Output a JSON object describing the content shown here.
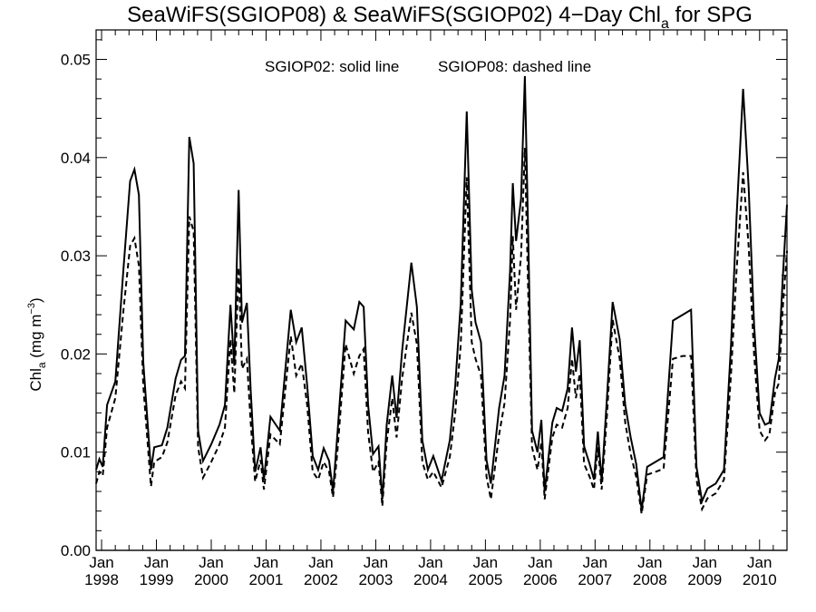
{
  "chart_data": {
    "type": "line",
    "title": {
      "prefix": "SeaWiFS(SGIOP08) & SeaWiFS(SGIOP02) 4−Day Chl",
      "subscript": "a",
      "suffix": " for SPG"
    },
    "ylabel": {
      "prefix": "Chl",
      "subscript": "a",
      "middle": " (mg m",
      "superscript": "−3",
      "suffix": ")"
    },
    "annotation": {
      "solid": "SGIOP02: solid line",
      "dashed": "SGIOP08: dashed line"
    },
    "x_ticks": [
      {
        "month": "Jan",
        "year": "1998",
        "t": 1998.0
      },
      {
        "month": "Jan",
        "year": "1999",
        "t": 1999.0
      },
      {
        "month": "Jan",
        "year": "2000",
        "t": 2000.0
      },
      {
        "month": "Jan",
        "year": "2001",
        "t": 2001.0
      },
      {
        "month": "Jan",
        "year": "2002",
        "t": 2002.0
      },
      {
        "month": "Jan",
        "year": "2003",
        "t": 2003.0
      },
      {
        "month": "Jan",
        "year": "2004",
        "t": 2004.0
      },
      {
        "month": "Jan",
        "year": "2005",
        "t": 2005.0
      },
      {
        "month": "Jan",
        "year": "2006",
        "t": 2006.0
      },
      {
        "month": "Jan",
        "year": "2007",
        "t": 2007.0
      },
      {
        "month": "Jan",
        "year": "2008",
        "t": 2008.0
      },
      {
        "month": "Jan",
        "year": "2009",
        "t": 2009.0
      },
      {
        "month": "Jan",
        "year": "2010",
        "t": 2010.0
      }
    ],
    "y_ticks": [
      "0.00",
      "0.01",
      "0.02",
      "0.03",
      "0.04",
      "0.05"
    ],
    "xlim": [
      1997.9,
      2010.5
    ],
    "ylim": [
      0,
      0.053
    ],
    "series": [
      {
        "name": "SGIOP02",
        "style": "solid",
        "points": [
          [
            1997.9,
            0.0082
          ],
          [
            1997.96,
            0.0093
          ],
          [
            1998.02,
            0.0085
          ],
          [
            1998.1,
            0.0148
          ],
          [
            1998.25,
            0.0172
          ],
          [
            1998.4,
            0.0287
          ],
          [
            1998.52,
            0.0376
          ],
          [
            1998.6,
            0.0388
          ],
          [
            1998.68,
            0.0362
          ],
          [
            1998.76,
            0.0192
          ],
          [
            1998.9,
            0.0082
          ],
          [
            1998.96,
            0.0105
          ],
          [
            1999.1,
            0.0107
          ],
          [
            1999.2,
            0.0125
          ],
          [
            1999.35,
            0.0175
          ],
          [
            1999.45,
            0.0194
          ],
          [
            1999.52,
            0.0198
          ],
          [
            1999.6,
            0.0421
          ],
          [
            1999.68,
            0.0394
          ],
          [
            1999.76,
            0.0122
          ],
          [
            1999.85,
            0.0091
          ],
          [
            2000.0,
            0.0108
          ],
          [
            2000.15,
            0.0128
          ],
          [
            2000.25,
            0.0148
          ],
          [
            2000.35,
            0.025
          ],
          [
            2000.42,
            0.0188
          ],
          [
            2000.5,
            0.0367
          ],
          [
            2000.56,
            0.0232
          ],
          [
            2000.65,
            0.0252
          ],
          [
            2000.72,
            0.0163
          ],
          [
            2000.8,
            0.008
          ],
          [
            2000.9,
            0.0105
          ],
          [
            2000.96,
            0.0072
          ],
          [
            2001.08,
            0.0136
          ],
          [
            2001.25,
            0.0122
          ],
          [
            2001.45,
            0.0245
          ],
          [
            2001.55,
            0.0212
          ],
          [
            2001.65,
            0.0227
          ],
          [
            2001.75,
            0.0168
          ],
          [
            2001.85,
            0.0096
          ],
          [
            2001.95,
            0.0082
          ],
          [
            2002.05,
            0.0104
          ],
          [
            2002.15,
            0.0091
          ],
          [
            2002.22,
            0.006
          ],
          [
            2002.3,
            0.0118
          ],
          [
            2002.45,
            0.0234
          ],
          [
            2002.6,
            0.0225
          ],
          [
            2002.7,
            0.0253
          ],
          [
            2002.78,
            0.0248
          ],
          [
            2002.86,
            0.0148
          ],
          [
            2002.95,
            0.0098
          ],
          [
            2003.05,
            0.0106
          ],
          [
            2003.12,
            0.0052
          ],
          [
            2003.2,
            0.0128
          ],
          [
            2003.3,
            0.0178
          ],
          [
            2003.38,
            0.0135
          ],
          [
            2003.48,
            0.0203
          ],
          [
            2003.65,
            0.0293
          ],
          [
            2003.75,
            0.0248
          ],
          [
            2003.85,
            0.0112
          ],
          [
            2003.95,
            0.0082
          ],
          [
            2004.05,
            0.0096
          ],
          [
            2004.2,
            0.0071
          ],
          [
            2004.35,
            0.0112
          ],
          [
            2004.45,
            0.0168
          ],
          [
            2004.55,
            0.0252
          ],
          [
            2004.66,
            0.0447
          ],
          [
            2004.75,
            0.0265
          ],
          [
            2004.82,
            0.0232
          ],
          [
            2004.92,
            0.0212
          ],
          [
            2005.02,
            0.0092
          ],
          [
            2005.1,
            0.0068
          ],
          [
            2005.25,
            0.0145
          ],
          [
            2005.35,
            0.0178
          ],
          [
            2005.45,
            0.0285
          ],
          [
            2005.5,
            0.0374
          ],
          [
            2005.56,
            0.0315
          ],
          [
            2005.65,
            0.0358
          ],
          [
            2005.72,
            0.0483
          ],
          [
            2005.78,
            0.032
          ],
          [
            2005.85,
            0.0122
          ],
          [
            2005.95,
            0.01
          ],
          [
            2006.02,
            0.0133
          ],
          [
            2006.08,
            0.006
          ],
          [
            2006.22,
            0.013
          ],
          [
            2006.3,
            0.0145
          ],
          [
            2006.4,
            0.0142
          ],
          [
            2006.5,
            0.0165
          ],
          [
            2006.58,
            0.0227
          ],
          [
            2006.65,
            0.0182
          ],
          [
            2006.72,
            0.0214
          ],
          [
            2006.8,
            0.0106
          ],
          [
            2006.9,
            0.0088
          ],
          [
            2006.98,
            0.0072
          ],
          [
            2007.05,
            0.0121
          ],
          [
            2007.12,
            0.007
          ],
          [
            2007.22,
            0.0158
          ],
          [
            2007.32,
            0.0253
          ],
          [
            2007.45,
            0.0215
          ],
          [
            2007.55,
            0.0148
          ],
          [
            2007.65,
            0.0115
          ],
          [
            2007.75,
            0.0088
          ],
          [
            2007.85,
            0.0041
          ],
          [
            2007.95,
            0.0085
          ],
          [
            2008.1,
            0.009
          ],
          [
            2008.25,
            0.0095
          ],
          [
            2008.42,
            0.0234
          ],
          [
            2008.6,
            0.024
          ],
          [
            2008.75,
            0.0245
          ],
          [
            2008.85,
            0.0085
          ],
          [
            2008.95,
            0.005
          ],
          [
            2009.05,
            0.0063
          ],
          [
            2009.2,
            0.0068
          ],
          [
            2009.35,
            0.0082
          ],
          [
            2009.48,
            0.021
          ],
          [
            2009.58,
            0.034
          ],
          [
            2009.7,
            0.047
          ],
          [
            2009.8,
            0.037
          ],
          [
            2009.9,
            0.023
          ],
          [
            2010.0,
            0.014
          ],
          [
            2010.1,
            0.0128
          ],
          [
            2010.18,
            0.013
          ],
          [
            2010.28,
            0.0175
          ],
          [
            2010.35,
            0.0195
          ],
          [
            2010.42,
            0.0275
          ],
          [
            2010.5,
            0.0352
          ]
        ]
      },
      {
        "name": "SGIOP08",
        "style": "dashed",
        "points": [
          [
            1997.9,
            0.0068
          ],
          [
            1997.96,
            0.008
          ],
          [
            1998.02,
            0.0076
          ],
          [
            1998.1,
            0.0125
          ],
          [
            1998.25,
            0.0155
          ],
          [
            1998.4,
            0.0245
          ],
          [
            1998.52,
            0.031
          ],
          [
            1998.6,
            0.0318
          ],
          [
            1998.68,
            0.029
          ],
          [
            1998.76,
            0.0168
          ],
          [
            1998.9,
            0.0065
          ],
          [
            1998.96,
            0.009
          ],
          [
            1999.1,
            0.0095
          ],
          [
            1999.2,
            0.011
          ],
          [
            1999.35,
            0.0158
          ],
          [
            1999.45,
            0.0172
          ],
          [
            1999.52,
            0.0165
          ],
          [
            1999.6,
            0.034
          ],
          [
            1999.68,
            0.0325
          ],
          [
            1999.76,
            0.0105
          ],
          [
            1999.85,
            0.0074
          ],
          [
            2000.0,
            0.009
          ],
          [
            2000.15,
            0.0108
          ],
          [
            2000.25,
            0.0125
          ],
          [
            2000.35,
            0.0215
          ],
          [
            2000.42,
            0.016
          ],
          [
            2000.5,
            0.0288
          ],
          [
            2000.56,
            0.0185
          ],
          [
            2000.65,
            0.0195
          ],
          [
            2000.72,
            0.013
          ],
          [
            2000.8,
            0.007
          ],
          [
            2000.9,
            0.0092
          ],
          [
            2000.96,
            0.0062
          ],
          [
            2001.08,
            0.0118
          ],
          [
            2001.25,
            0.0108
          ],
          [
            2001.45,
            0.0218
          ],
          [
            2001.55,
            0.0178
          ],
          [
            2001.65,
            0.019
          ],
          [
            2001.75,
            0.0148
          ],
          [
            2001.85,
            0.008
          ],
          [
            2001.95,
            0.0072
          ],
          [
            2002.05,
            0.009
          ],
          [
            2002.15,
            0.008
          ],
          [
            2002.22,
            0.0054
          ],
          [
            2002.3,
            0.01
          ],
          [
            2002.45,
            0.021
          ],
          [
            2002.6,
            0.018
          ],
          [
            2002.7,
            0.0198
          ],
          [
            2002.78,
            0.0205
          ],
          [
            2002.86,
            0.012
          ],
          [
            2002.95,
            0.008
          ],
          [
            2003.05,
            0.009
          ],
          [
            2003.12,
            0.0045
          ],
          [
            2003.2,
            0.011
          ],
          [
            2003.3,
            0.0155
          ],
          [
            2003.38,
            0.0115
          ],
          [
            2003.48,
            0.0175
          ],
          [
            2003.65,
            0.0242
          ],
          [
            2003.75,
            0.021
          ],
          [
            2003.85,
            0.009
          ],
          [
            2003.95,
            0.0072
          ],
          [
            2004.05,
            0.008
          ],
          [
            2004.2,
            0.0064
          ],
          [
            2004.35,
            0.0095
          ],
          [
            2004.45,
            0.014
          ],
          [
            2004.55,
            0.021
          ],
          [
            2004.66,
            0.038
          ],
          [
            2004.75,
            0.0212
          ],
          [
            2004.82,
            0.0195
          ],
          [
            2004.92,
            0.0178
          ],
          [
            2005.02,
            0.0075
          ],
          [
            2005.1,
            0.0052
          ],
          [
            2005.25,
            0.0118
          ],
          [
            2005.35,
            0.015
          ],
          [
            2005.45,
            0.0235
          ],
          [
            2005.5,
            0.032
          ],
          [
            2005.56,
            0.0245
          ],
          [
            2005.65,
            0.03
          ],
          [
            2005.72,
            0.041
          ],
          [
            2005.78,
            0.0262
          ],
          [
            2005.85,
            0.0105
          ],
          [
            2005.95,
            0.0082
          ],
          [
            2006.02,
            0.011
          ],
          [
            2006.08,
            0.0052
          ],
          [
            2006.22,
            0.0115
          ],
          [
            2006.3,
            0.0128
          ],
          [
            2006.4,
            0.0125
          ],
          [
            2006.5,
            0.0145
          ],
          [
            2006.58,
            0.0195
          ],
          [
            2006.65,
            0.0155
          ],
          [
            2006.72,
            0.018
          ],
          [
            2006.8,
            0.0088
          ],
          [
            2006.9,
            0.0075
          ],
          [
            2006.98,
            0.0062
          ],
          [
            2007.05,
            0.0105
          ],
          [
            2007.12,
            0.0062
          ],
          [
            2007.22,
            0.014
          ],
          [
            2007.32,
            0.0235
          ],
          [
            2007.45,
            0.0195
          ],
          [
            2007.55,
            0.013
          ],
          [
            2007.65,
            0.0098
          ],
          [
            2007.75,
            0.0075
          ],
          [
            2007.85,
            0.0037
          ],
          [
            2007.95,
            0.0077
          ],
          [
            2008.1,
            0.008
          ],
          [
            2008.25,
            0.0083
          ],
          [
            2008.42,
            0.0195
          ],
          [
            2008.6,
            0.0198
          ],
          [
            2008.75,
            0.0198
          ],
          [
            2008.85,
            0.0072
          ],
          [
            2008.95,
            0.0042
          ],
          [
            2009.05,
            0.0053
          ],
          [
            2009.2,
            0.0058
          ],
          [
            2009.35,
            0.0072
          ],
          [
            2009.48,
            0.018
          ],
          [
            2009.58,
            0.0285
          ],
          [
            2009.7,
            0.0385
          ],
          [
            2009.8,
            0.031
          ],
          [
            2009.9,
            0.02
          ],
          [
            2010.0,
            0.0122
          ],
          [
            2010.1,
            0.0112
          ],
          [
            2010.18,
            0.0118
          ],
          [
            2010.28,
            0.016
          ],
          [
            2010.35,
            0.017
          ],
          [
            2010.42,
            0.0245
          ],
          [
            2010.5,
            0.0305
          ]
        ]
      }
    ],
    "grid": false,
    "legend": "annotation text top-center"
  }
}
